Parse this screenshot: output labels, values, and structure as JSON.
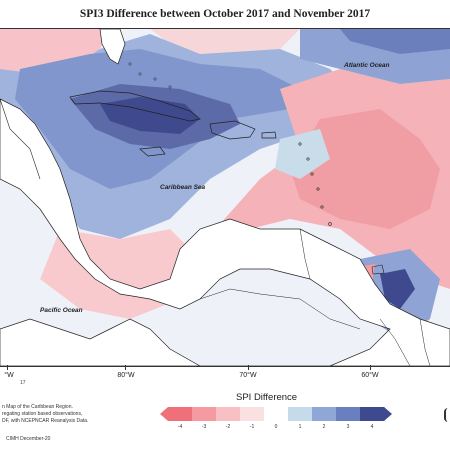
{
  "title": "SPI3 Difference between October 2017 and November 2017",
  "labels": {
    "atlantic": "Atlantic Ocean",
    "caribbean": "Caribbean Sea",
    "pacific": "Pacific Ocean"
  },
  "x_ticks": [
    "°W",
    "80°W",
    "70°W",
    "60°W"
  ],
  "small_number": "17",
  "legend": {
    "title": "SPI Difference",
    "ticks": [
      "-4",
      "-3",
      "-2",
      "-1",
      "0",
      "1",
      "2",
      "3",
      "4"
    ],
    "colors": [
      "#f0707a",
      "#f59aa0",
      "#f8c0c3",
      "#fbe0e2",
      "#ffffff",
      "#c6dbe9",
      "#8fa6d6",
      "#6a7fbf",
      "#3d4a8f"
    ]
  },
  "credits": [
    "n Map of the Caribbean Region.",
    "regating station based observations,",
    "DF, with NCEPNCAR Reanalysis Data."
  ],
  "footer": "CIMH December-20"
}
